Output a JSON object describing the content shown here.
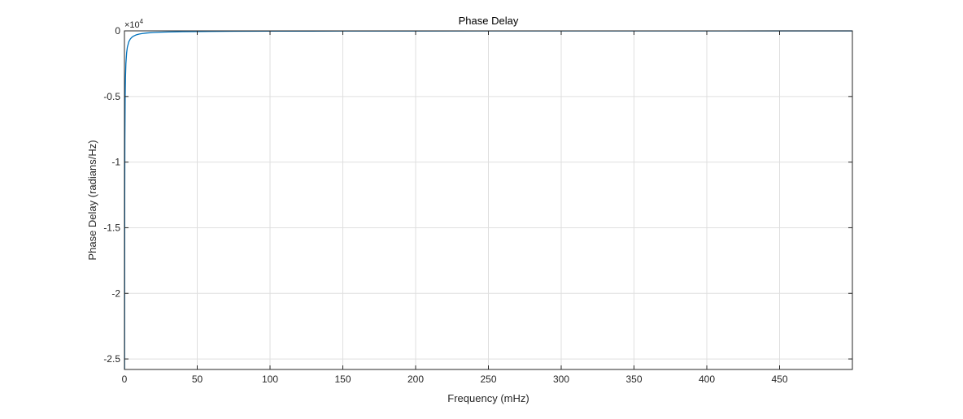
{
  "chart_data": {
    "type": "line",
    "title": "Phase Delay",
    "xlabel": "Frequency (mHz)",
    "ylabel": "Phase Delay (radians/Hz)",
    "xlim": [
      0,
      500
    ],
    "ylim": [
      -2.58,
      0
    ],
    "x_ticks": [
      0,
      50,
      100,
      150,
      200,
      250,
      300,
      350,
      400,
      450
    ],
    "x_tick_labels": [
      "0",
      "50",
      "100",
      "150",
      "200",
      "250",
      "300",
      "350",
      "400",
      "450"
    ],
    "y_ticks": [
      0,
      -0.5,
      -1,
      -1.5,
      -2,
      -2.5
    ],
    "y_tick_labels": [
      "0",
      "-0.5",
      "-1",
      "-1.5",
      "-2",
      "-2.5"
    ],
    "y_exponent_label": "×10",
    "y_exponent_power": "4",
    "y_scale_factor": 10000,
    "grid": true,
    "line_color": "#0072BD",
    "series": [
      {
        "x": [
          0.1,
          0.2,
          0.3,
          0.5,
          0.7,
          1,
          1.5,
          2,
          3,
          4,
          5,
          6,
          8,
          10,
          12,
          15,
          20,
          25,
          30,
          40,
          50,
          75,
          100,
          150,
          200,
          250,
          300,
          350,
          400,
          450,
          500
        ],
        "y": [
          -25600,
          -12500,
          -8300,
          -5000,
          -3570,
          -2500,
          -1670,
          -1250,
          -830,
          -625,
          -500,
          -415,
          -310,
          -250,
          -208,
          -167,
          -125,
          -100,
          -83,
          -62,
          -50,
          -33,
          -25,
          -17,
          -12,
          -10,
          -8,
          -7,
          -6,
          -5,
          -5
        ]
      }
    ]
  }
}
